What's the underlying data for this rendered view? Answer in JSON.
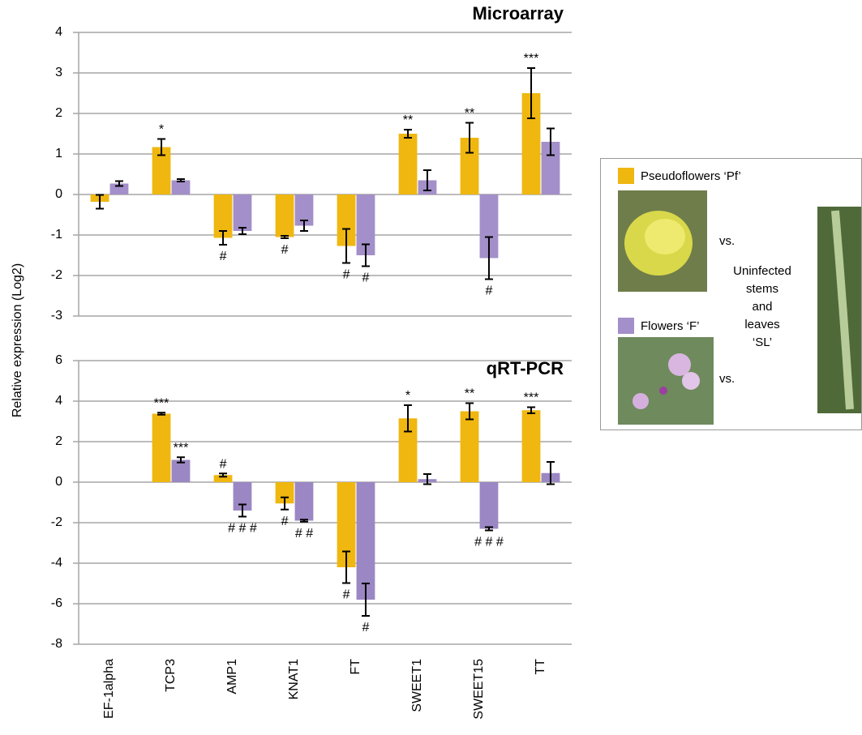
{
  "y_label": "Relative expression (Log2)",
  "legend_panel": {
    "vs_labels": [
      "vs.",
      "vs."
    ],
    "comparison": [
      "Uninfected",
      "stems",
      "and",
      "leaves",
      "‘SL’"
    ]
  },
  "chart_data": [
    {
      "type": "bar",
      "title": "Microarray",
      "categories": [
        null,
        null,
        null,
        null,
        null,
        null,
        null,
        null
      ],
      "ylim": [
        -3,
        4
      ],
      "yticks": [
        -3,
        -2,
        -1,
        0,
        1,
        2,
        3,
        4
      ],
      "grid": true,
      "series": [
        {
          "name": "Pseudoflowers ‘Pf’",
          "color": "#efb710",
          "values": [
            -0.18,
            1.17,
            -1.07,
            -1.05,
            -1.27,
            1.5,
            1.4,
            2.5
          ],
          "errors": [
            0.17,
            0.2,
            0.17,
            0.03,
            0.42,
            0.1,
            0.37,
            0.62
          ],
          "annotations": [
            null,
            "*",
            "#",
            "#",
            "#",
            "**",
            "**",
            "***"
          ]
        },
        {
          "name": "Flowers ‘F’",
          "color": "#a38fc9",
          "values": [
            0.27,
            0.35,
            -0.9,
            -0.77,
            -1.5,
            0.35,
            -1.57,
            1.3
          ],
          "errors": [
            0.06,
            0.03,
            0.08,
            0.13,
            0.27,
            0.25,
            0.52,
            0.33
          ],
          "annotations": [
            null,
            null,
            null,
            null,
            "#",
            null,
            "#",
            null
          ]
        }
      ]
    },
    {
      "type": "bar",
      "title": "qRT-PCR",
      "categories": [
        "EF-1alpha",
        "TCP3",
        "AMP1",
        "KNAT1",
        "FT",
        "SWEET1",
        "SWEET15",
        "TT"
      ],
      "ylim": [
        -8,
        6
      ],
      "yticks": [
        -8,
        -6,
        -4,
        -2,
        0,
        2,
        4,
        6
      ],
      "grid": true,
      "series": [
        {
          "color": "#efb710",
          "values": [
            null,
            3.38,
            0.35,
            -1.05,
            -4.2,
            3.15,
            3.5,
            3.55
          ],
          "errors": [
            null,
            0.05,
            0.08,
            0.3,
            0.78,
            0.65,
            0.4,
            0.15
          ],
          "annotations": [
            null,
            "***",
            "#",
            "#",
            "#",
            "*",
            "**",
            "***"
          ]
        },
        {
          "color": "#9b87c3",
          "values": [
            null,
            1.1,
            -1.4,
            -1.9,
            -5.8,
            0.15,
            -2.3,
            0.45
          ],
          "errors": [
            null,
            0.13,
            0.3,
            0.05,
            0.8,
            0.25,
            0.08,
            0.55
          ],
          "annotations": [
            null,
            "***",
            "# # #",
            "# #",
            "#",
            null,
            "# # #",
            null
          ]
        }
      ]
    }
  ]
}
